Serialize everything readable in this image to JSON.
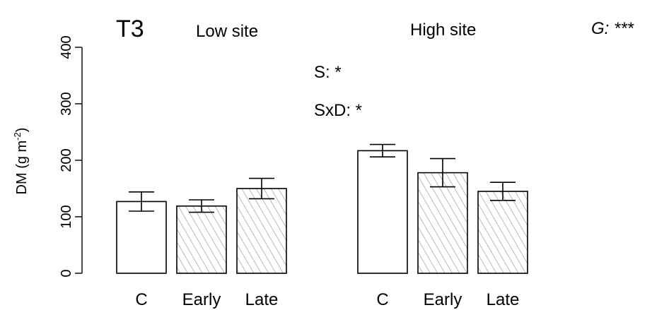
{
  "chart_data": {
    "type": "bar",
    "panel_label": "T3",
    "ylabel": "DM (g m⁻²)",
    "ylabel_main": "DM (g m",
    "ylabel_sup": "-2",
    "ylabel_close": ")",
    "ylim": [
      0,
      400
    ],
    "yticks": [
      0,
      100,
      200,
      300,
      400
    ],
    "grid": false,
    "groups": [
      {
        "label": "Low site",
        "categories": [
          "C",
          "Early",
          "Late"
        ]
      },
      {
        "label": "High site",
        "categories": [
          "C",
          "Early",
          "Late"
        ]
      }
    ],
    "bars": [
      {
        "group": "Low site",
        "category": "C",
        "value": 127,
        "error": 17,
        "fill": "open"
      },
      {
        "group": "Low site",
        "category": "Early",
        "value": 119,
        "error": 11,
        "fill": "hatched"
      },
      {
        "group": "Low site",
        "category": "Late",
        "value": 150,
        "error": 18,
        "fill": "hatched"
      },
      {
        "group": "High site",
        "category": "C",
        "value": 217,
        "error": 11,
        "fill": "open"
      },
      {
        "group": "High site",
        "category": "Early",
        "value": 178,
        "error": 25,
        "fill": "hatched"
      },
      {
        "group": "High site",
        "category": "Late",
        "value": 145,
        "error": 16,
        "fill": "hatched"
      }
    ],
    "annotations": [
      "S: *",
      "SxD: *"
    ],
    "corner_annotation": "G: ***",
    "colors": {
      "bar_edge": "#000000",
      "open_fill": "#ffffff",
      "hatch": "#9a9a9a"
    }
  }
}
